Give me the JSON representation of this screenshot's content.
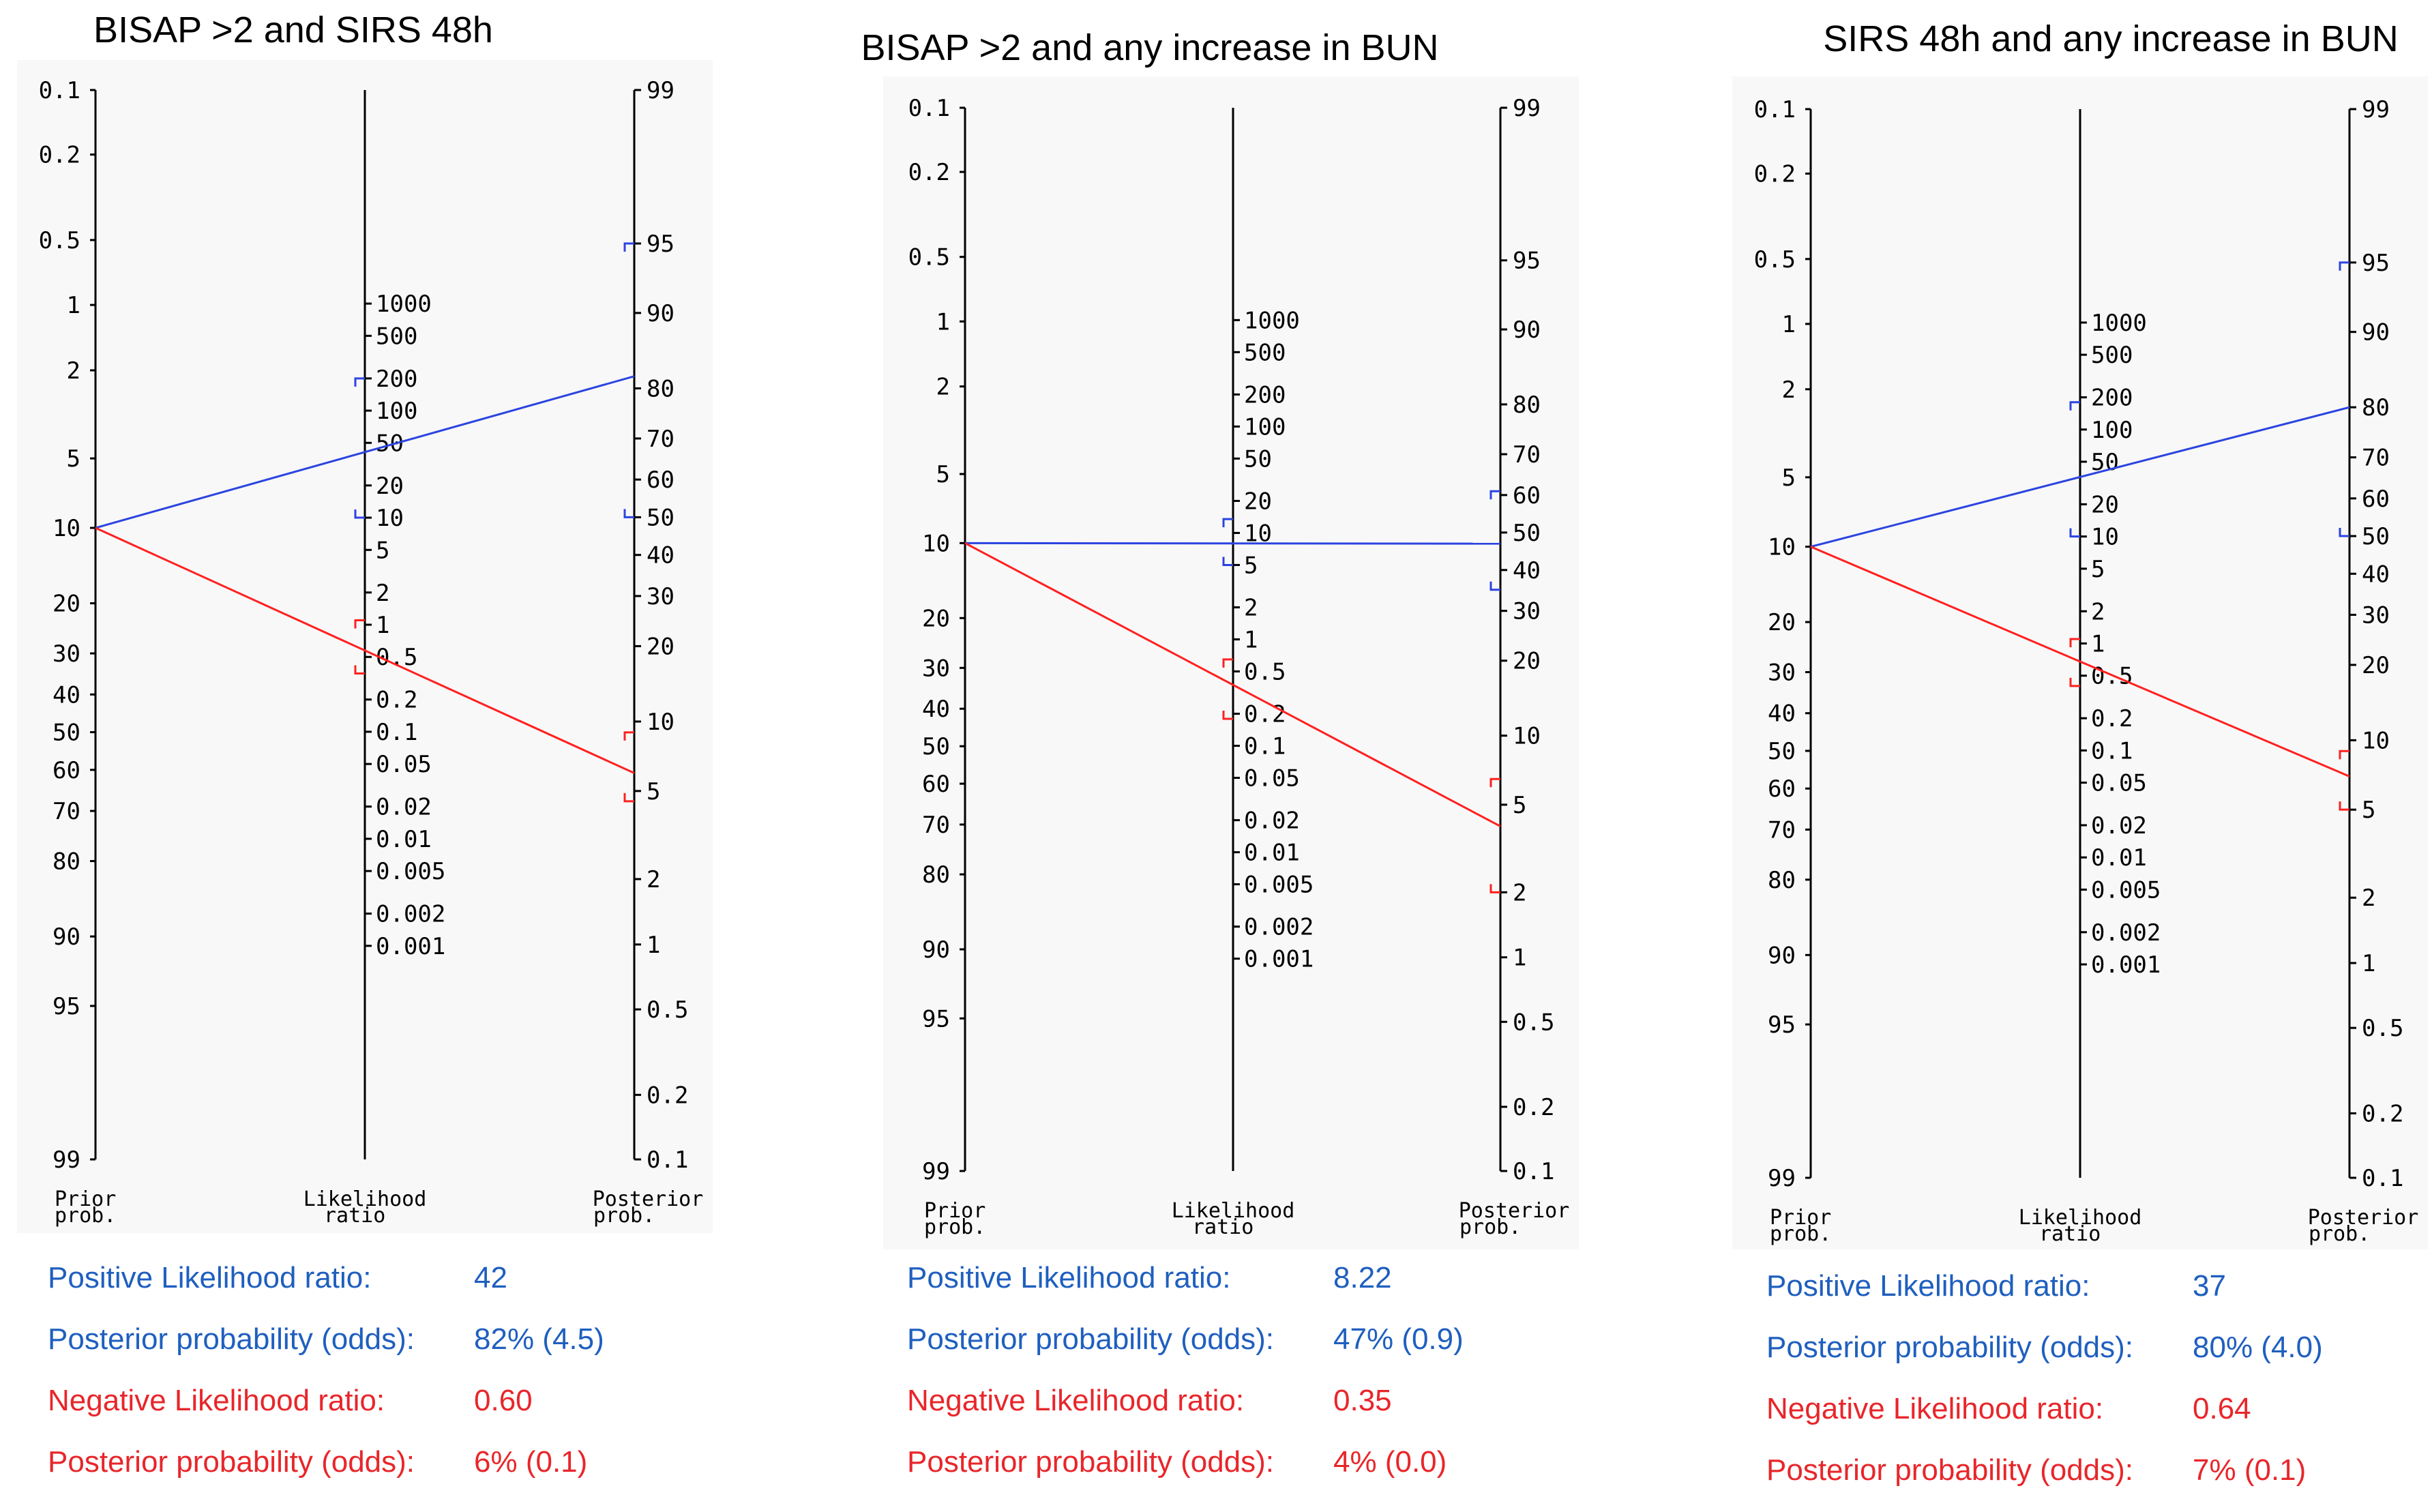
{
  "chart_data": [
    {
      "type": "nomogram",
      "title": "BISAP >2 and SIRS 48h",
      "prior_probability": 10,
      "positive": {
        "likelihood_ratio": 42,
        "lr_ci": [
          10,
          200
        ],
        "posterior_probability": 82,
        "posterior_ci": [
          50,
          95
        ],
        "label": "Positive Likelihood ratio:",
        "value_text": "42",
        "post_label": "Posterior probability (odds):",
        "post_text": "82% (4.5)"
      },
      "negative": {
        "likelihood_ratio": 0.6,
        "lr_ci": [
          0.35,
          1.1
        ],
        "posterior_probability": 6,
        "posterior_ci": [
          4.5,
          9.0
        ],
        "label": "Negative Likelihood ratio:",
        "value_text": "0.60",
        "post_label": "Posterior probability (odds):",
        "post_text": "6% (0.1)"
      }
    },
    {
      "type": "nomogram",
      "title": "BISAP >2 and any increase in BUN",
      "prior_probability": 10,
      "positive": {
        "likelihood_ratio": 8.22,
        "lr_ci": [
          5.0,
          13.5
        ],
        "posterior_probability": 47,
        "posterior_ci": [
          35,
          61
        ],
        "label": "Positive Likelihood ratio:",
        "value_text": "8.22",
        "post_label": "Posterior probability (odds):",
        "post_text": "47% (0.9)"
      },
      "negative": {
        "likelihood_ratio": 0.35,
        "lr_ci": [
          0.18,
          0.65
        ],
        "posterior_probability": 4,
        "posterior_ci": [
          2.0,
          6.5
        ],
        "label": "Negative Likelihood ratio:",
        "value_text": "0.35",
        "post_label": "Posterior probability (odds):",
        "post_text": "4% (0.0)"
      }
    },
    {
      "type": "nomogram",
      "title": "SIRS 48h and any increase in BUN",
      "prior_probability": 10,
      "positive": {
        "likelihood_ratio": 37,
        "lr_ci": [
          10,
          180
        ],
        "posterior_probability": 80,
        "posterior_ci": [
          50,
          95
        ],
        "label": "Positive Likelihood ratio:",
        "value_text": "37",
        "post_label": "Posterior probability (odds):",
        "post_text": "80% (4.0)"
      },
      "negative": {
        "likelihood_ratio": 0.64,
        "lr_ci": [
          0.4,
          1.1
        ],
        "posterior_probability": 7,
        "posterior_ci": [
          5.0,
          9.0
        ],
        "label": "Negative Likelihood ratio:",
        "value_text": "0.64",
        "post_label": "Posterior probability (odds):",
        "post_text": "7% (0.1)"
      }
    }
  ],
  "axes": {
    "prior_ticks": [
      "0.1",
      "0.2",
      "0.5",
      "1",
      "2",
      "5",
      "10",
      "20",
      "30",
      "40",
      "50",
      "60",
      "70",
      "80",
      "90",
      "95",
      "99"
    ],
    "lr_ticks": [
      "1000",
      "500",
      "200",
      "100",
      "50",
      "20",
      "10",
      "5",
      "2",
      "1",
      "0.5",
      "0.2",
      "0.1",
      "0.05",
      "0.02",
      "0.01",
      "0.005",
      "0.002",
      "0.001"
    ],
    "post_ticks": [
      "99",
      "95",
      "90",
      "80",
      "70",
      "60",
      "50",
      "40",
      "30",
      "20",
      "10",
      "5",
      "2",
      "1",
      "0.5",
      "0.2",
      "0.1"
    ],
    "prior_label_1": "Prior",
    "prior_label_2": "prob.",
    "lr_label_1": "Likelihood",
    "lr_label_2": "ratio",
    "post_label_1": "Posterior",
    "post_label_2": "prob."
  },
  "colors": {
    "positive": "#1f5fbf",
    "negative": "#e8262a",
    "axis": "#000000",
    "line_blue": "#2b44e0",
    "line_red": "#ff2020"
  }
}
